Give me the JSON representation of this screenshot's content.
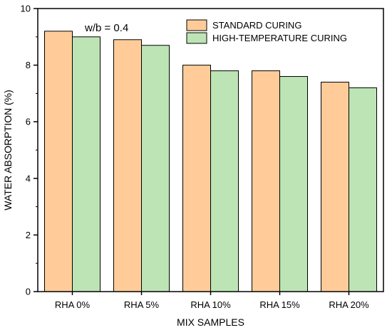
{
  "chart_data": {
    "type": "bar",
    "categories": [
      "RHA 0%",
      "RHA 5%",
      "RHA 10%",
      "RHA 15%",
      "RHA 20%"
    ],
    "series": [
      {
        "name": "STANDARD CURING",
        "color": "#FFCC99",
        "values": [
          9.2,
          8.9,
          8.0,
          7.8,
          7.4
        ]
      },
      {
        "name": "HIGH-TEMPERATURE CURING",
        "color": "#BCE4B5",
        "values": [
          9.0,
          8.7,
          7.8,
          7.6,
          7.2
        ]
      }
    ],
    "xlabel": "MIX SAMPLES",
    "ylabel": "WATER ABSORPTION (%)",
    "ylim": [
      0,
      10
    ],
    "yticks": [
      "0",
      "2",
      "4",
      "6",
      "8",
      "10"
    ],
    "annotation": "w/b = 0.4",
    "legend_position": "top-right",
    "grid": false
  }
}
